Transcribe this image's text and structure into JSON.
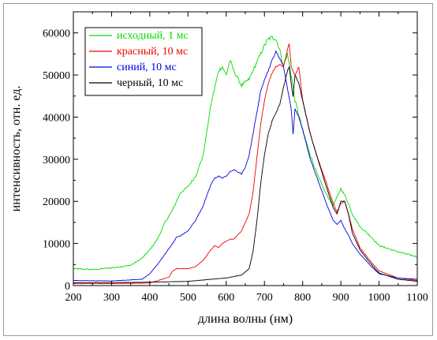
{
  "chart_data": {
    "type": "line",
    "xlabel": "длина волны (нм)",
    "ylabel": "интенсивность, отн. ед.",
    "xlim": [
      200,
      1100
    ],
    "ylim": [
      0,
      65000
    ],
    "xticks": [
      200,
      300,
      400,
      500,
      600,
      700,
      800,
      900,
      1000,
      1100
    ],
    "yticks": [
      0,
      10000,
      20000,
      30000,
      40000,
      50000,
      60000
    ],
    "grid": false,
    "legend_position": "top-left",
    "series": [
      {
        "name": "исходный, 1 мс",
        "color": "#00dd00",
        "x": [
          200,
          250,
          300,
          350,
          380,
          400,
          420,
          440,
          460,
          470,
          480,
          500,
          520,
          540,
          560,
          570,
          580,
          590,
          600,
          610,
          620,
          640,
          660,
          680,
          700,
          710,
          720,
          730,
          740,
          750,
          760,
          770,
          780,
          800,
          820,
          840,
          860,
          880,
          890,
          900,
          910,
          920,
          930,
          950,
          980,
          1000,
          1050,
          1100
        ],
        "y": [
          4000,
          3800,
          4200,
          4800,
          6500,
          8500,
          11000,
          15000,
          18000,
          20000,
          22000,
          23500,
          26000,
          31000,
          43000,
          47000,
          51000,
          52000,
          50000,
          53500,
          51000,
          47500,
          49000,
          53000,
          57000,
          58500,
          59000,
          58500,
          56000,
          52000,
          55000,
          50000,
          44000,
          37000,
          31000,
          26000,
          22000,
          19000,
          21000,
          23000,
          21500,
          19500,
          17000,
          14000,
          11500,
          9500,
          8000,
          6800
        ]
      },
      {
        "name": "красный, 10 мс",
        "color": "#ee0000",
        "x": [
          200,
          300,
          400,
          450,
          460,
          470,
          500,
          520,
          540,
          560,
          570,
          580,
          590,
          600,
          610,
          620,
          640,
          660,
          670,
          680,
          690,
          700,
          710,
          720,
          730,
          740,
          750,
          760,
          765,
          770,
          780,
          790,
          800,
          820,
          840,
          860,
          880,
          890,
          900,
          910,
          920,
          930,
          950,
          980,
          1000,
          1050,
          1100
        ],
        "y": [
          500,
          500,
          600,
          2000,
          3500,
          4000,
          4000,
          4500,
          6000,
          8500,
          9500,
          9000,
          10000,
          10500,
          11000,
          11000,
          13000,
          17000,
          22000,
          30000,
          38000,
          44000,
          48000,
          50500,
          52000,
          52500,
          52000,
          56000,
          57500,
          52000,
          50000,
          52000,
          44000,
          36000,
          30000,
          25000,
          19500,
          17500,
          19500,
          20000,
          17000,
          13500,
          9000,
          5500,
          3500,
          1800,
          1200
        ]
      },
      {
        "name": "синий, 10 мс",
        "color": "#0000dd",
        "x": [
          200,
          300,
          380,
          400,
          420,
          440,
          460,
          470,
          480,
          500,
          520,
          540,
          560,
          570,
          580,
          590,
          600,
          610,
          620,
          630,
          640,
          650,
          660,
          670,
          680,
          690,
          700,
          710,
          720,
          730,
          740,
          750,
          760,
          770,
          775,
          780,
          790,
          800,
          820,
          840,
          860,
          880,
          890,
          900,
          910,
          920,
          930,
          950,
          980,
          1000,
          1050,
          1100
        ],
        "y": [
          1200,
          1100,
          1500,
          2800,
          5000,
          7500,
          10000,
          11500,
          11800,
          13000,
          15500,
          19000,
          24000,
          25500,
          26000,
          25500,
          26000,
          27000,
          27500,
          27000,
          26500,
          28000,
          31000,
          36000,
          41000,
          46000,
          49000,
          51000,
          53500,
          55500,
          54000,
          52000,
          47000,
          42000,
          36000,
          42000,
          40000,
          37000,
          30000,
          25000,
          20000,
          15500,
          14500,
          15500,
          13500,
          12000,
          10000,
          7500,
          4500,
          2800,
          1800,
          1500
        ]
      },
      {
        "name": "черный, 10 мс",
        "color": "#000000",
        "x": [
          200,
          300,
          400,
          500,
          560,
          600,
          640,
          660,
          670,
          680,
          690,
          700,
          710,
          720,
          730,
          740,
          750,
          760,
          765,
          770,
          775,
          780,
          790,
          800,
          820,
          840,
          860,
          880,
          890,
          900,
          910,
          920,
          930,
          950,
          980,
          1000,
          1050,
          1100
        ],
        "y": [
          700,
          700,
          800,
          1000,
          1500,
          1800,
          2500,
          4000,
          8000,
          15000,
          24000,
          31000,
          36000,
          39000,
          41000,
          43000,
          47000,
          51000,
          52000,
          48000,
          45000,
          50000,
          48000,
          44000,
          36000,
          30000,
          24000,
          18500,
          17000,
          20000,
          20000,
          17000,
          12500,
          8500,
          5000,
          3000,
          1500,
          1000
        ]
      }
    ]
  }
}
